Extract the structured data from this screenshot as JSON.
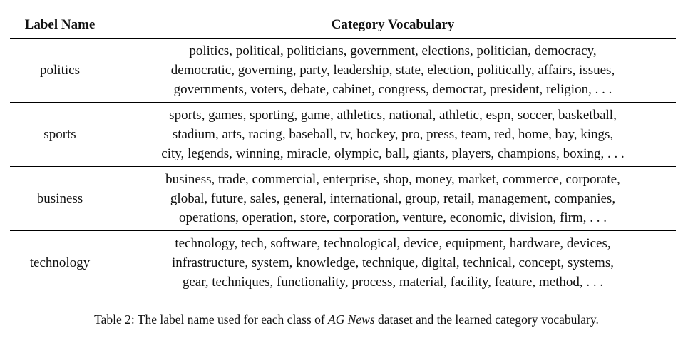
{
  "table": {
    "headers": [
      "Label Name",
      "Category Vocabulary"
    ],
    "rows": [
      {
        "label": "politics",
        "lines": [
          "politics, political, politicians, government, elections, politician, democracy,",
          "democratic, governing, party, leadership, state, election, politically, affairs, issues,",
          "governments, voters, debate, cabinet, congress, democrat, president, religion, . . ."
        ]
      },
      {
        "label": "sports",
        "lines": [
          "sports, games, sporting, game, athletics, national, athletic, espn, soccer, basketball,",
          "stadium, arts, racing, baseball, tv, hockey, pro, press, team, red, home, bay, kings,",
          "city, legends, winning, miracle, olympic, ball, giants, players, champions, boxing, . . ."
        ]
      },
      {
        "label": "business",
        "lines": [
          "business, trade, commercial, enterprise, shop, money, market, commerce, corporate,",
          "global, future, sales, general, international, group, retail, management, companies,",
          "operations, operation, store, corporation, venture, economic, division, firm, . . ."
        ]
      },
      {
        "label": "technology",
        "lines": [
          "technology, tech, software, technological, device, equipment, hardware, devices,",
          "infrastructure, system, knowledge, technique, digital, technical, concept, systems,",
          "gear, techniques, functionality, process, material, facility, feature, method, . . ."
        ]
      }
    ]
  },
  "caption": {
    "prefix": "Table 2: The label name used for each class of ",
    "dataset": "AG News",
    "suffix": " dataset and the learned category vocabulary."
  }
}
